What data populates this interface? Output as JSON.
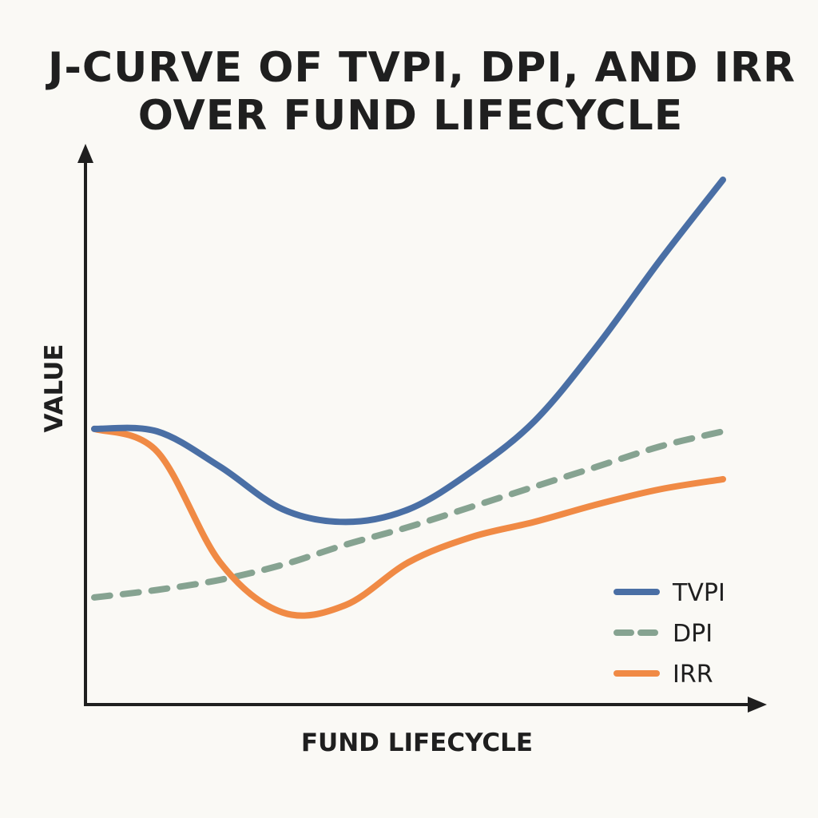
{
  "chart_data": {
    "type": "line",
    "title": [
      "J-CURVE OF TVPI, DPI, AND IRR",
      "OVER FUND LIFECYCLE"
    ],
    "xlabel": "FUND LIFECYCLE",
    "ylabel": "VALUE",
    "xlim": [
      0,
      10
    ],
    "ylim": [
      0,
      10
    ],
    "grid": false,
    "legend_position": "bottom-right",
    "x": [
      0,
      1,
      2,
      3,
      4,
      5,
      6,
      7,
      8,
      9,
      10
    ],
    "series": [
      {
        "name": "TVPI",
        "color": "#4a6fa5",
        "style": "solid",
        "values": [
          5.05,
          5.0,
          4.3,
          3.45,
          3.2,
          3.45,
          4.2,
          5.2,
          6.7,
          8.4,
          10.0
        ]
      },
      {
        "name": "DPI",
        "color": "#86a391",
        "style": "dashed",
        "values": [
          1.7,
          1.85,
          2.05,
          2.35,
          2.75,
          3.1,
          3.5,
          3.9,
          4.3,
          4.7,
          5.0
        ]
      },
      {
        "name": "IRR",
        "color": "#f08a45",
        "style": "solid",
        "values": [
          5.05,
          4.6,
          2.4,
          1.4,
          1.55,
          2.4,
          2.9,
          3.2,
          3.55,
          3.85,
          4.05
        ]
      }
    ]
  }
}
